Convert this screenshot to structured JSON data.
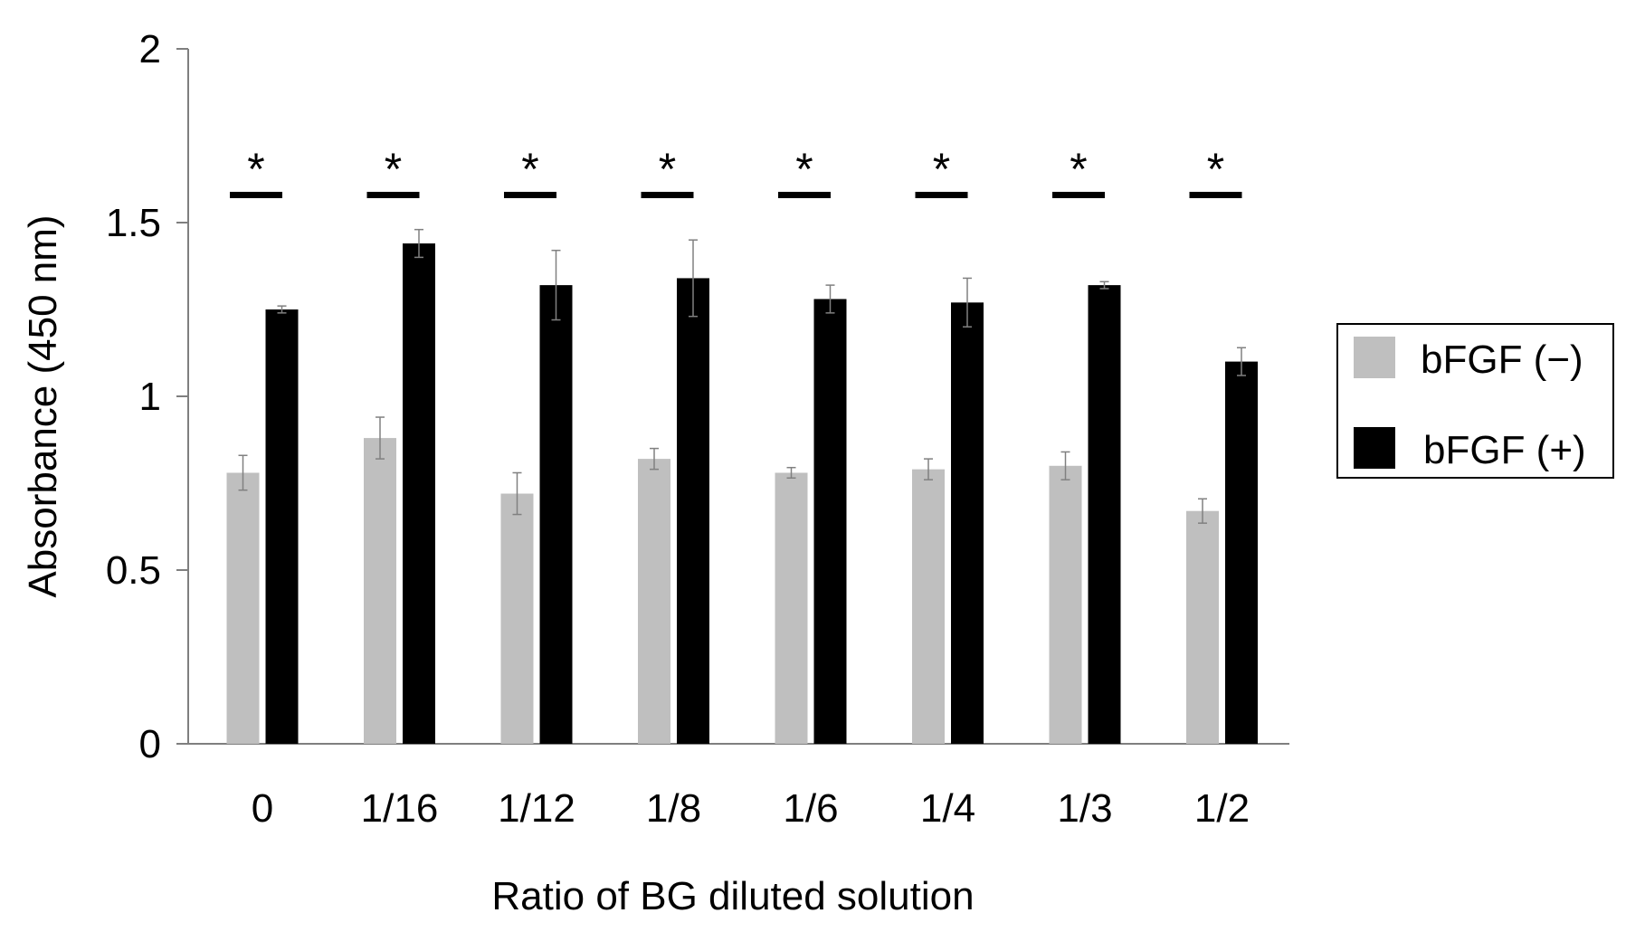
{
  "chart_data": {
    "type": "bar",
    "title": "",
    "xlabel": "Ratio of BG diluted solution",
    "ylabel": "Absorbance (450 nm)",
    "ylim": [
      0,
      2
    ],
    "yticks": [
      "0",
      "0.5",
      "1",
      "1.5",
      "2"
    ],
    "ytick_values": [
      0,
      0.5,
      1,
      1.5,
      2
    ],
    "categories": [
      "0",
      "1/16",
      "1/12",
      "1/8",
      "1/6",
      "1/4",
      "1/3",
      "1/2"
    ],
    "series": [
      {
        "name": "bFGF (−)",
        "color": "#bfbfbf",
        "values": [
          0.78,
          0.88,
          0.72,
          0.82,
          0.78,
          0.79,
          0.8,
          0.67
        ],
        "errors": [
          0.05,
          0.06,
          0.06,
          0.03,
          0.015,
          0.03,
          0.04,
          0.035
        ]
      },
      {
        "name": "bFGF (+)",
        "color": "#000000",
        "values": [
          1.25,
          1.44,
          1.32,
          1.34,
          1.28,
          1.27,
          1.32,
          1.1
        ],
        "errors": [
          0.01,
          0.04,
          0.1,
          0.11,
          0.04,
          0.07,
          0.01,
          0.04
        ]
      }
    ],
    "significance": [
      "*",
      "*",
      "*",
      "*",
      "*",
      "*",
      "*",
      "*"
    ],
    "legend_position": "right",
    "grid": false
  }
}
